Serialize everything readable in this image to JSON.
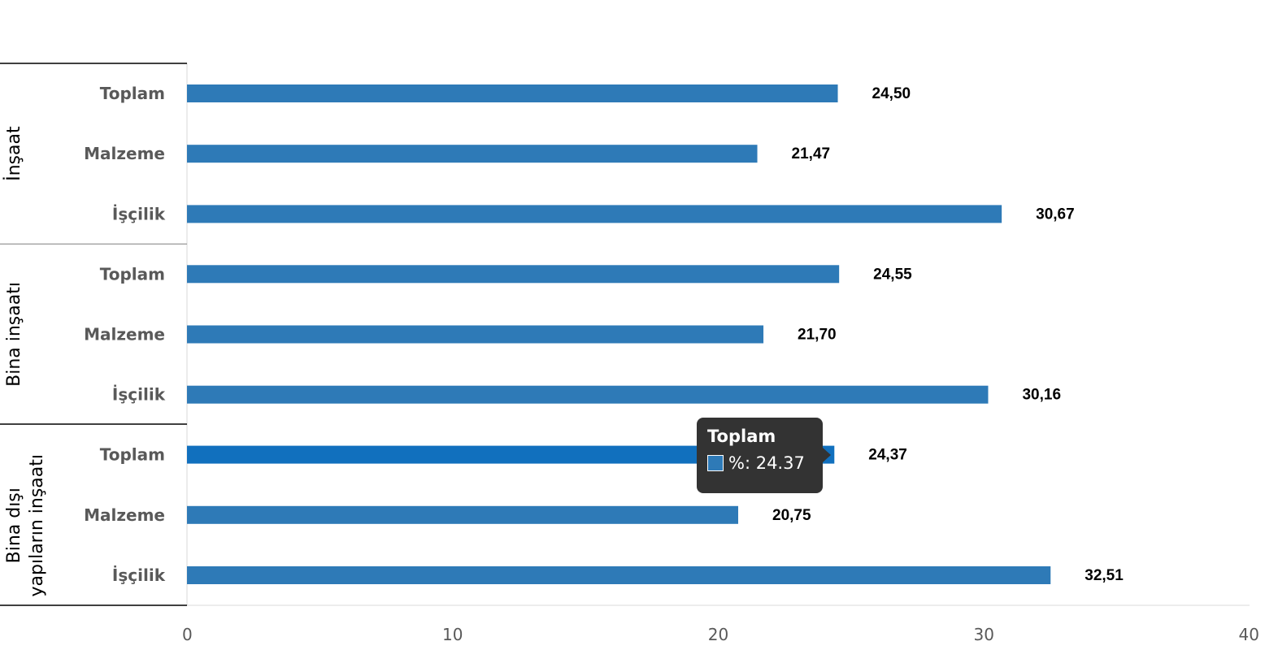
{
  "chart_data": {
    "type": "bar",
    "orientation": "horizontal",
    "groups": [
      {
        "name": "İnşaat",
        "categories": [
          "Toplam",
          "Malzeme",
          "İşçilik"
        ],
        "values": [
          24.5,
          21.47,
          30.67
        ],
        "labels": [
          "24,50",
          "21,47",
          "30,67"
        ]
      },
      {
        "name": "Bina inşaatı",
        "categories": [
          "Toplam",
          "Malzeme",
          "İşçilik"
        ],
        "values": [
          24.55,
          21.7,
          30.16
        ],
        "labels": [
          "24,55",
          "21,70",
          "30,16"
        ]
      },
      {
        "name_lines": [
          "Bina dışı",
          "yapıların inşaatı"
        ],
        "categories": [
          "Toplam",
          "Malzeme",
          "İşçilik"
        ],
        "values": [
          24.37,
          20.75,
          32.51
        ],
        "labels": [
          "24,37",
          "20,75",
          "32,51"
        ]
      }
    ],
    "xlim": [
      0,
      40
    ],
    "xticks": [
      "0",
      "10",
      "20",
      "30",
      "40"
    ],
    "bar_color": "#2e7ab7",
    "highlight_color": "#1170be",
    "highlighted": {
      "group": 2,
      "bar": 0
    }
  },
  "tooltip": {
    "title": "Toplam",
    "value_text": "%: 24.37",
    "swatch_color": "#2e7ab7"
  }
}
